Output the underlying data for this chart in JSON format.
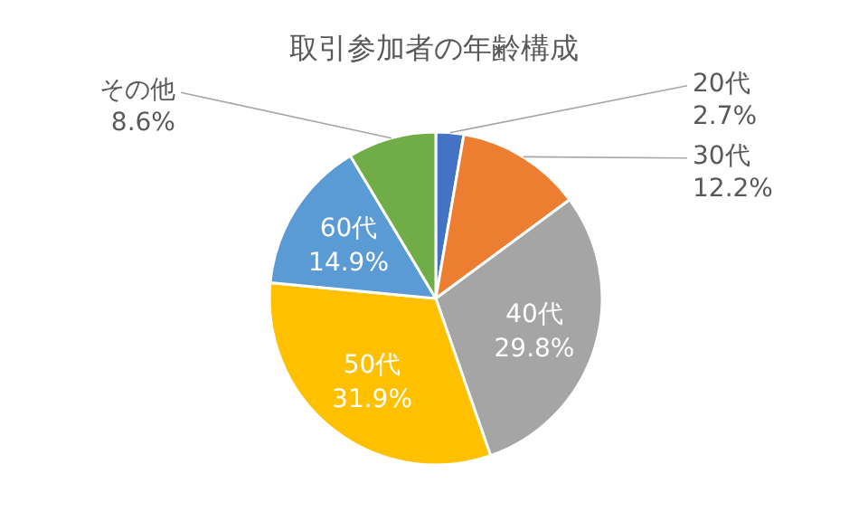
{
  "chart_data": {
    "type": "pie",
    "title": "取引参加者の年齢構成",
    "categories": [
      "20代",
      "30代",
      "40代",
      "50代",
      "60代",
      "その他"
    ],
    "values": [
      2.7,
      12.2,
      29.8,
      31.9,
      14.9,
      8.6
    ],
    "value_labels": [
      "2.7%",
      "12.2%",
      "29.8%",
      "31.9%",
      "14.9%",
      "8.6%"
    ],
    "colors": [
      "#4472c4",
      "#ed7d31",
      "#a5a5a5",
      "#ffc000",
      "#5b9bd5",
      "#70ad47"
    ]
  }
}
